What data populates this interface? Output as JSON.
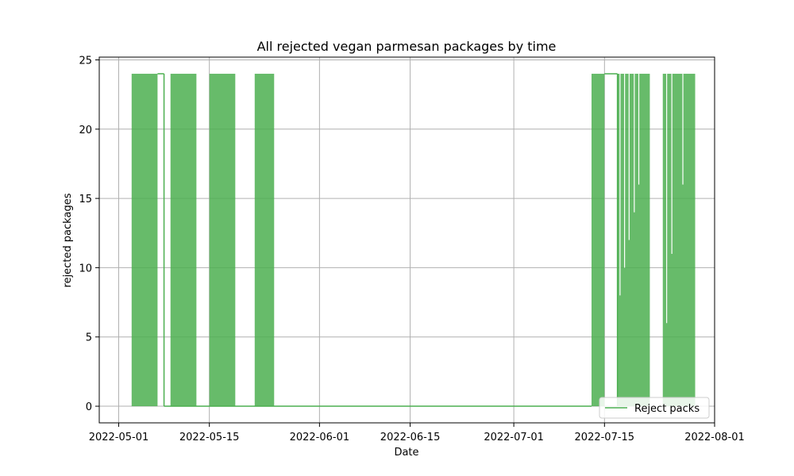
{
  "chart_data": {
    "type": "line",
    "title": "All rejected vegan parmesan packages by time",
    "xlabel": "Date",
    "ylabel": "rejected packages",
    "xlim": [
      "2022-04-28",
      "2022-08-01"
    ],
    "ylim": [
      -1.2,
      25.2
    ],
    "x_ticks": [
      "2022-05-01",
      "2022-05-15",
      "2022-06-01",
      "2022-06-15",
      "2022-07-01",
      "2022-07-15",
      "2022-08-01"
    ],
    "y_ticks": [
      0,
      5,
      10,
      15,
      20,
      25
    ],
    "grid": true,
    "legend_position": "lower-right",
    "series": [
      {
        "name": "Reject packs",
        "color": "#4caf50",
        "filled_bands": [
          {
            "start": "2022-05-03",
            "end": "2022-05-07",
            "min": 0,
            "max": 24
          },
          {
            "start": "2022-05-09",
            "end": "2022-05-13",
            "min": 0,
            "max": 24
          },
          {
            "start": "2022-05-15",
            "end": "2022-05-19",
            "min": 0,
            "max": 24
          },
          {
            "start": "2022-05-22",
            "end": "2022-05-25",
            "min": 0,
            "max": 24
          },
          {
            "start": "2022-07-13",
            "end": "2022-07-15",
            "min": 0,
            "max": 24
          },
          {
            "start": "2022-07-17",
            "end": "2022-07-22",
            "min": 0,
            "max": 24
          },
          {
            "start": "2022-07-24",
            "end": "2022-07-29",
            "min": 0,
            "max": 24
          }
        ],
        "plateaus": [
          {
            "start": "2022-05-07",
            "end": "2022-05-08",
            "value": 24
          },
          {
            "start": "2022-07-15",
            "end": "2022-07-17",
            "value": 24
          }
        ],
        "baseline": {
          "start": "2022-05-08",
          "end": "2022-07-13",
          "value": 0
        }
      }
    ]
  }
}
